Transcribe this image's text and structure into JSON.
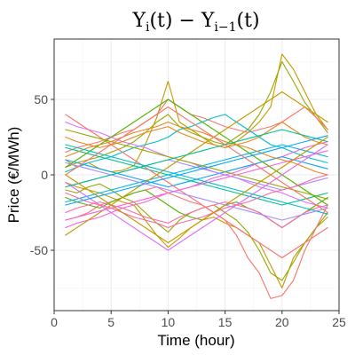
{
  "chart_data": {
    "type": "line",
    "title": {
      "base": "Y",
      "sub1": "i",
      "mid": "(t) − Y",
      "sub2": "i−1",
      "end": "(t)"
    },
    "xlabel": "Time (hour)",
    "ylabel": "Price (€/MWh)",
    "xlim": [
      0,
      25
    ],
    "ylim": [
      -90,
      90
    ],
    "xticks": [
      0,
      5,
      10,
      15,
      20,
      25
    ],
    "yticks": [
      -50,
      0,
      50
    ],
    "xtick_labels": [
      "0",
      "5",
      "10",
      "15",
      "20",
      "25"
    ],
    "ytick_labels": [
      "-50",
      "0",
      "50"
    ],
    "grid": true,
    "legend": "none",
    "x": [
      1,
      2,
      3,
      4,
      5,
      6,
      7,
      8,
      9,
      10,
      11,
      12,
      13,
      14,
      15,
      16,
      17,
      18,
      19,
      20,
      21,
      22,
      23,
      24
    ],
    "palette": [
      "#F8766D",
      "#E7861B",
      "#C49A00",
      "#95A900",
      "#53B400",
      "#00BC56",
      "#00C094",
      "#00BFC4",
      "#00B6EB",
      "#06A4FF",
      "#A58AFF",
      "#DF70F8",
      "#FB61D7",
      "#FF66A8"
    ],
    "series": [
      {
        "color": "#C49A00",
        "values": [
          10,
          5,
          8,
          4,
          2,
          3,
          6,
          20,
          38,
          62,
          35,
          30,
          25,
          20,
          18,
          22,
          28,
          35,
          45,
          80,
          70,
          55,
          40,
          30
        ]
      },
      {
        "color": "#C49A00",
        "values": [
          -5,
          -8,
          -10,
          -12,
          -15,
          -18,
          -20,
          -30,
          -40,
          -48,
          -42,
          -35,
          -30,
          -28,
          -32,
          -35,
          -40,
          -45,
          -60,
          -75,
          -55,
          -45,
          -35,
          -28
        ]
      },
      {
        "color": "#95A900",
        "values": [
          5,
          8,
          10,
          12,
          15,
          18,
          22,
          28,
          35,
          40,
          32,
          28,
          25,
          22,
          20,
          25,
          30,
          40,
          55,
          75,
          62,
          48,
          38,
          28
        ]
      },
      {
        "color": "#95A900",
        "values": [
          -10,
          -12,
          -8,
          -6,
          -10,
          -15,
          -18,
          -25,
          -32,
          -38,
          -30,
          -25,
          -22,
          -20,
          -25,
          -30,
          -38,
          -50,
          -65,
          -70,
          -58,
          -45,
          -35,
          -25
        ]
      },
      {
        "color": "#F8766D",
        "values": [
          -30,
          -28,
          -25,
          -20,
          -18,
          -15,
          -12,
          -10,
          -8,
          -12,
          -15,
          -18,
          -20,
          -25,
          -30,
          -40,
          -55,
          -65,
          -82,
          -80,
          -70,
          -50,
          -35,
          -20
        ]
      },
      {
        "color": "#F8766D",
        "values": [
          15,
          18,
          20,
          22,
          25,
          28,
          30,
          35,
          40,
          50,
          45,
          40,
          38,
          35,
          32,
          30,
          28,
          30,
          32,
          35,
          40,
          45,
          38,
          30
        ]
      },
      {
        "color": "#00BFC4",
        "values": [
          2,
          5,
          8,
          10,
          12,
          15,
          18,
          20,
          22,
          25,
          30,
          32,
          35,
          38,
          40,
          35,
          30,
          25,
          20,
          18,
          15,
          12,
          10,
          8
        ]
      },
      {
        "color": "#53B400",
        "values": [
          -15,
          -18,
          -20,
          -22,
          -18,
          -15,
          -12,
          -10,
          -15,
          -20,
          -25,
          -28,
          -30,
          -25,
          -20,
          -18,
          -22,
          -25,
          -30,
          -35,
          -30,
          -25,
          -20,
          -15
        ]
      },
      {
        "color": "#DF70F8",
        "values": [
          35,
          32,
          30,
          28,
          25,
          22,
          20,
          18,
          15,
          12,
          10,
          8,
          5,
          2,
          0,
          -2,
          -5,
          -8,
          -10,
          -12,
          -15,
          -18,
          -20,
          -22
        ]
      },
      {
        "color": "#FB61D7",
        "values": [
          -35,
          -32,
          -30,
          -28,
          -25,
          -22,
          -20,
          -18,
          -15,
          -12,
          -10,
          -8,
          -5,
          -2,
          0,
          2,
          5,
          8,
          10,
          12,
          15,
          18,
          20,
          22
        ]
      },
      {
        "color": "#E7861B",
        "values": [
          25,
          22,
          20,
          18,
          20,
          22,
          25,
          28,
          30,
          32,
          28,
          25,
          22,
          20,
          18,
          20,
          22,
          25,
          30,
          35,
          30,
          25,
          22,
          20
        ]
      },
      {
        "color": "#FF66A8",
        "values": [
          -25,
          -22,
          -20,
          -18,
          -20,
          -22,
          -25,
          -28,
          -30,
          -32,
          -28,
          -25,
          -22,
          -20,
          -18,
          -20,
          -22,
          -25,
          -30,
          -35,
          -30,
          -25,
          -22,
          -20
        ]
      },
      {
        "color": "#06A4FF",
        "values": [
          10,
          8,
          6,
          4,
          2,
          0,
          -2,
          -4,
          -6,
          -8,
          -6,
          -4,
          -2,
          0,
          2,
          4,
          6,
          8,
          10,
          12,
          10,
          8,
          6,
          4
        ]
      },
      {
        "color": "#A58AFF",
        "values": [
          -8,
          -6,
          -4,
          -2,
          0,
          2,
          4,
          6,
          8,
          10,
          8,
          6,
          4,
          2,
          0,
          -2,
          -4,
          -6,
          -8,
          -10,
          -8,
          -6,
          -4,
          -2
        ]
      },
      {
        "color": "#00C094",
        "values": [
          18,
          16,
          14,
          12,
          10,
          8,
          6,
          4,
          2,
          0,
          -2,
          -4,
          -6,
          -8,
          -10,
          -12,
          -14,
          -16,
          -18,
          -20,
          -18,
          -16,
          -14,
          -12
        ]
      },
      {
        "color": "#00B6EB",
        "values": [
          -18,
          -16,
          -14,
          -12,
          -10,
          -8,
          -6,
          -4,
          -2,
          0,
          2,
          4,
          6,
          8,
          10,
          12,
          14,
          16,
          18,
          20,
          18,
          16,
          14,
          12
        ]
      },
      {
        "color": "#F8766D",
        "values": [
          40,
          35,
          30,
          25,
          20,
          15,
          10,
          5,
          0,
          -5,
          -10,
          -15,
          -20,
          -25,
          -30,
          -35,
          -40,
          -45,
          -50,
          -55,
          -50,
          -45,
          -40,
          -35
        ]
      },
      {
        "color": "#C49A00",
        "values": [
          -40,
          -35,
          -30,
          -25,
          -20,
          -15,
          -10,
          -5,
          0,
          5,
          10,
          15,
          20,
          25,
          30,
          35,
          40,
          45,
          50,
          55,
          50,
          45,
          40,
          35
        ]
      },
      {
        "color": "#95A900",
        "values": [
          30,
          28,
          26,
          24,
          22,
          20,
          18,
          16,
          14,
          12,
          10,
          8,
          6,
          4,
          2,
          0,
          -2,
          -4,
          -6,
          -8,
          -10,
          -12,
          -14,
          -16
        ]
      },
      {
        "color": "#FB61D7",
        "values": [
          -30,
          -28,
          -26,
          -24,
          -22,
          -20,
          -18,
          -16,
          -14,
          -12,
          -10,
          -8,
          -6,
          -4,
          -2,
          0,
          2,
          4,
          6,
          8,
          10,
          12,
          14,
          16
        ]
      },
      {
        "color": "#53B400",
        "values": [
          5,
          10,
          15,
          20,
          25,
          30,
          35,
          40,
          45,
          50,
          45,
          40,
          35,
          30,
          25,
          20,
          15,
          10,
          5,
          0,
          -5,
          -10,
          -15,
          -20
        ]
      },
      {
        "color": "#DF70F8",
        "values": [
          -5,
          -10,
          -15,
          -20,
          -25,
          -30,
          -35,
          -40,
          -45,
          -50,
          -45,
          -40,
          -35,
          -30,
          -25,
          -20,
          -15,
          -10,
          -5,
          0,
          5,
          10,
          15,
          20
        ]
      },
      {
        "color": "#E7861B",
        "values": [
          12,
          15,
          18,
          20,
          22,
          25,
          28,
          30,
          32,
          35,
          32,
          30,
          28,
          25,
          22,
          20,
          18,
          15,
          12,
          10,
          8,
          5,
          2,
          0
        ]
      },
      {
        "color": "#FF66A8",
        "values": [
          -12,
          -15,
          -18,
          -20,
          -22,
          -25,
          -28,
          -30,
          -32,
          -35,
          -32,
          -30,
          -28,
          -25,
          -22,
          -20,
          -18,
          -15,
          -12,
          -10,
          -8,
          -5,
          -2,
          0
        ]
      },
      {
        "color": "#00BFC4",
        "values": [
          20,
          18,
          16,
          14,
          12,
          10,
          8,
          6,
          4,
          2,
          0,
          -2,
          -4,
          -6,
          -8,
          -10,
          -12,
          -14,
          -16,
          -18,
          -20,
          -22,
          -24,
          -26
        ]
      },
      {
        "color": "#06A4FF",
        "values": [
          -20,
          -18,
          -16,
          -14,
          -12,
          -10,
          -8,
          -6,
          -4,
          -2,
          0,
          2,
          4,
          6,
          8,
          10,
          12,
          14,
          16,
          18,
          20,
          22,
          24,
          26
        ]
      },
      {
        "color": "#A58AFF",
        "values": [
          8,
          6,
          4,
          2,
          0,
          -2,
          -4,
          -6,
          -8,
          -10,
          -12,
          -14,
          -16,
          -18,
          -20,
          -22,
          -24,
          -26,
          -28,
          -30,
          -28,
          -26,
          -24,
          -22
        ]
      },
      {
        "color": "#00C094",
        "values": [
          -8,
          -6,
          -4,
          -2,
          0,
          2,
          4,
          6,
          8,
          10,
          12,
          14,
          16,
          18,
          20,
          22,
          24,
          26,
          28,
          30,
          28,
          26,
          24,
          22
        ]
      },
      {
        "color": "#F8766D",
        "values": [
          0,
          5,
          10,
          15,
          20,
          25,
          30,
          35,
          40,
          45,
          40,
          35,
          30,
          25,
          20,
          15,
          10,
          5,
          0,
          -5,
          -10,
          -15,
          -20,
          -25
        ]
      },
      {
        "color": "#C49A00",
        "values": [
          0,
          -5,
          -10,
          -15,
          -20,
          -25,
          -30,
          -35,
          -40,
          -45,
          -40,
          -35,
          -30,
          -25,
          -20,
          -15,
          -10,
          -5,
          0,
          5,
          10,
          15,
          20,
          25
        ]
      }
    ]
  }
}
